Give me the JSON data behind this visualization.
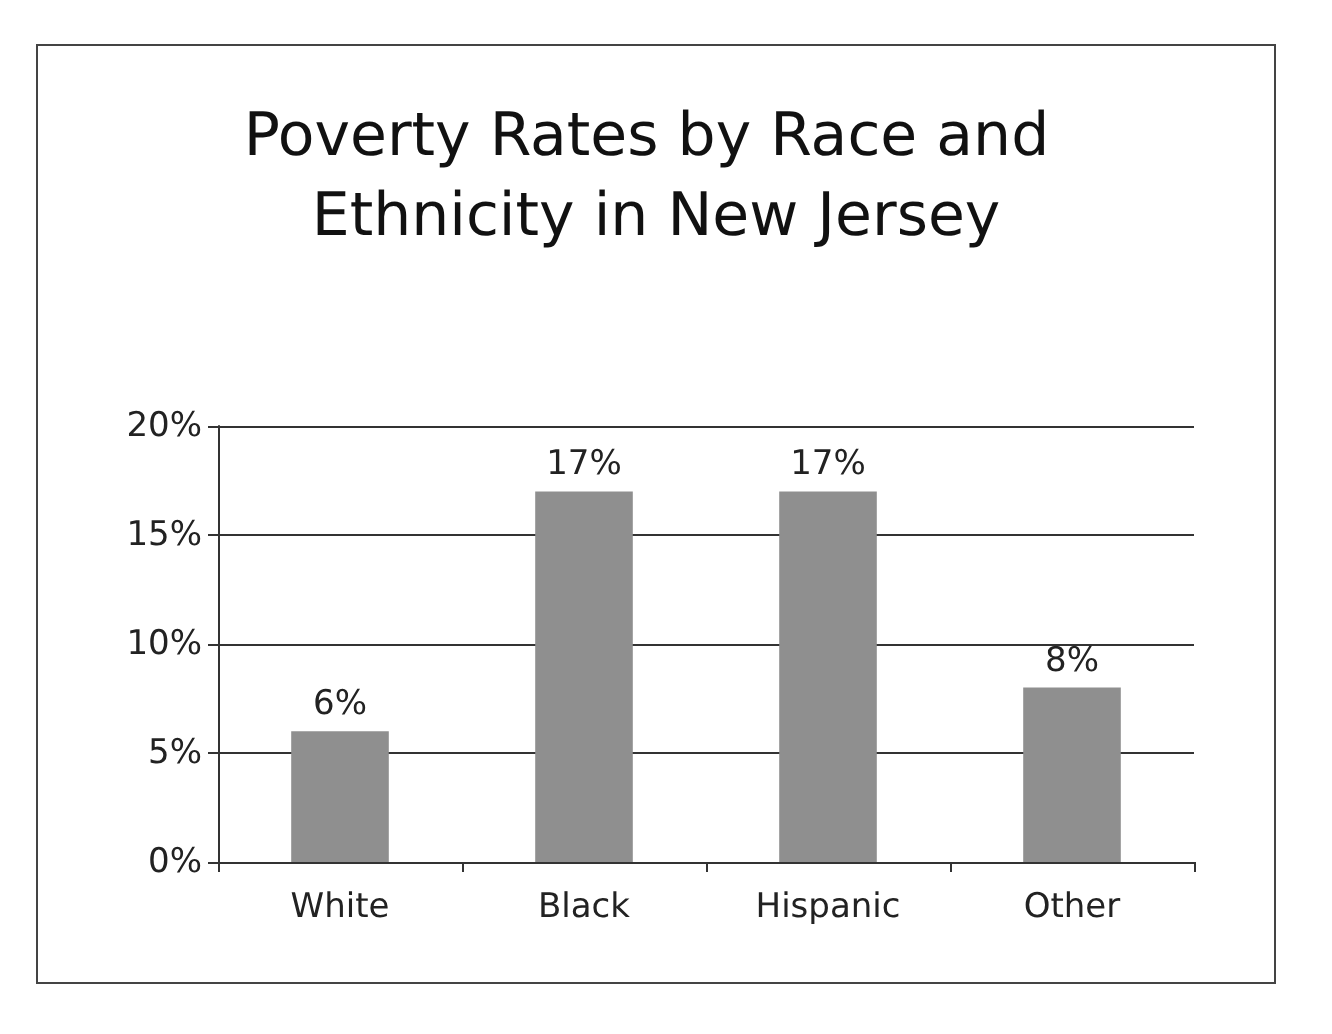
{
  "chart_data": {
    "type": "bar",
    "title": "Poverty Rates by Race and Ethnicity in New Jersey",
    "categories": [
      "White",
      "Black",
      "Hispanic",
      "Other"
    ],
    "values": [
      6,
      17,
      17,
      8
    ],
    "value_labels": [
      "6%",
      "17%",
      "17%",
      "8%"
    ],
    "color": "#8f8f8f",
    "ylim": [
      0,
      20
    ],
    "yticks": [
      {
        "value": 0,
        "label": "0%"
      },
      {
        "value": 5,
        "label": "5%"
      },
      {
        "value": 10,
        "label": "10%"
      },
      {
        "value": 15,
        "label": "15%"
      },
      {
        "value": 20,
        "label": "20%"
      }
    ],
    "grid": "y"
  }
}
